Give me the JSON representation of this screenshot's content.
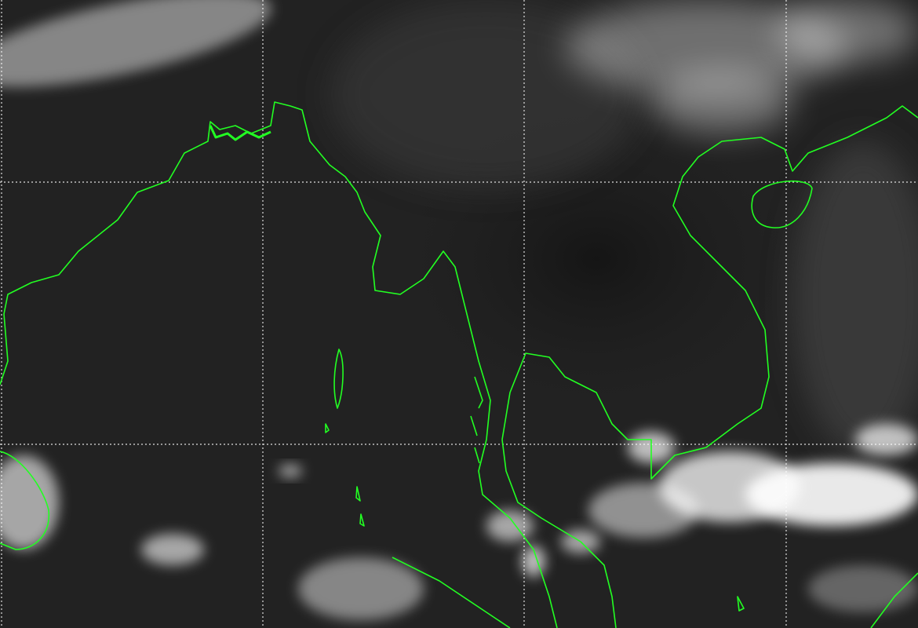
{
  "map": {
    "kind": "infrared satellite image",
    "colors": {
      "background": "#202020",
      "coastline": "#22ff22",
      "grid": "#ffffff",
      "cloud": "#ffffff"
    }
  }
}
